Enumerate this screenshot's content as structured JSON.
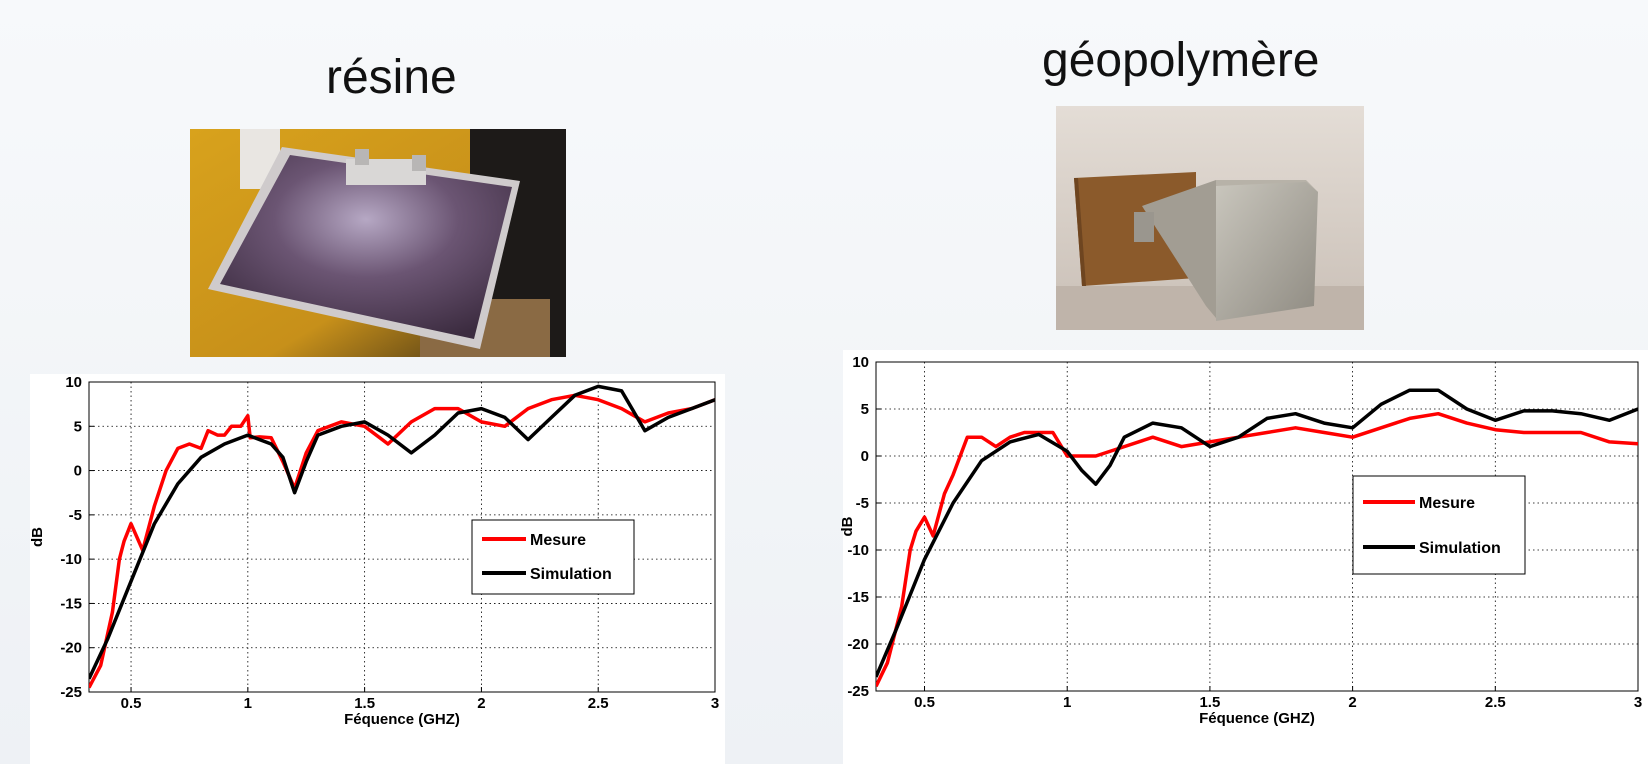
{
  "panels": [
    {
      "title": "résine",
      "photo_icon": "resin-horn-antenna-photo",
      "chart": {
        "type": "line",
        "xlabel": "Féquence (GHZ)",
        "ylabel": "dB",
        "xlim": [
          0.32,
          3
        ],
        "ylim": [
          -25,
          10
        ],
        "xticks": [
          0.5,
          1,
          1.5,
          2,
          2.5,
          3
        ],
        "xtick_labels": [
          "0.5",
          "1",
          "1.5",
          "2",
          "2.5",
          "3"
        ],
        "yticks": [
          10,
          5,
          0,
          -5,
          -10,
          -15,
          -20,
          -25
        ],
        "ytick_labels": [
          "10",
          "5",
          "0",
          "-5",
          "-10",
          "-15",
          "-20",
          "-25"
        ],
        "grid": true,
        "legend_position": "center-right",
        "series": [
          {
            "name": "Mesure",
            "color": "#ff0000",
            "x": [
              0.32,
              0.37,
              0.42,
              0.45,
              0.47,
              0.5,
              0.55,
              0.6,
              0.65,
              0.7,
              0.75,
              0.8,
              0.83,
              0.87,
              0.9,
              0.93,
              0.97,
              1.0,
              1.01,
              1.05,
              1.1,
              1.15,
              1.2,
              1.25,
              1.3,
              1.4,
              1.5,
              1.6,
              1.7,
              1.8,
              1.9,
              2.0,
              2.1,
              2.2,
              2.3,
              2.4,
              2.5,
              2.6,
              2.7,
              2.8,
              2.9,
              3.0
            ],
            "y": [
              -24.5,
              -22,
              -16,
              -10,
              -8,
              -6,
              -9,
              -4,
              0,
              2.5,
              3,
              2.5,
              4.5,
              4,
              4,
              5,
              5,
              6.2,
              3.7,
              3.8,
              3.7,
              1,
              -2,
              2,
              4.5,
              5.5,
              5,
              3,
              5.5,
              7,
              7,
              5.5,
              5,
              7,
              8,
              8.5,
              8,
              7,
              5.5,
              6.5,
              7,
              8
            ]
          },
          {
            "name": "Simulation",
            "color": "#000000",
            "x": [
              0.32,
              0.4,
              0.5,
              0.6,
              0.7,
              0.8,
              0.9,
              1.0,
              1.1,
              1.15,
              1.2,
              1.25,
              1.3,
              1.4,
              1.5,
              1.6,
              1.7,
              1.8,
              1.9,
              2.0,
              2.1,
              2.2,
              2.3,
              2.4,
              2.5,
              2.6,
              2.7,
              2.8,
              2.9,
              3.0
            ],
            "y": [
              -23.5,
              -19,
              -12.5,
              -6,
              -1.5,
              1.5,
              3,
              4,
              3,
              1.5,
              -2.5,
              1,
              4,
              5,
              5.5,
              4,
              2,
              4,
              6.5,
              7,
              6,
              3.5,
              6,
              8.5,
              9.5,
              9,
              4.5,
              6,
              7,
              8
            ]
          }
        ]
      }
    },
    {
      "title": "géopolymère",
      "photo_icon": "geopolymer-horn-antenna-photo",
      "chart": {
        "type": "line",
        "xlabel": "Féquence (GHZ)",
        "ylabel": "dB",
        "xlim": [
          0.33,
          3
        ],
        "ylim": [
          -25,
          10
        ],
        "xticks": [
          0.5,
          1,
          1.5,
          2,
          2.5,
          3
        ],
        "xtick_labels": [
          "0.5",
          "1",
          "1.5",
          "2",
          "2.5",
          "3"
        ],
        "yticks": [
          10,
          5,
          0,
          -5,
          -10,
          -15,
          -20,
          -25
        ],
        "ytick_labels": [
          "10",
          "5",
          "0",
          "-5",
          "-10",
          "-15",
          "-20",
          "-25"
        ],
        "grid": true,
        "legend_position": "center-right",
        "series": [
          {
            "name": "Mesure",
            "color": "#ff0000",
            "x": [
              0.33,
              0.37,
              0.42,
              0.45,
              0.47,
              0.5,
              0.53,
              0.57,
              0.6,
              0.65,
              0.7,
              0.75,
              0.8,
              0.85,
              0.9,
              0.95,
              1.0,
              1.1,
              1.2,
              1.3,
              1.4,
              1.5,
              1.6,
              1.7,
              1.8,
              1.9,
              2.0,
              2.1,
              2.2,
              2.3,
              2.4,
              2.5,
              2.6,
              2.7,
              2.8,
              2.9,
              3.0
            ],
            "y": [
              -24.5,
              -22,
              -16,
              -10,
              -8,
              -6.5,
              -8.5,
              -4,
              -2,
              2,
              2,
              1,
              2,
              2.5,
              2.5,
              2.5,
              0,
              0,
              1,
              2,
              1,
              1.5,
              2,
              2.5,
              3,
              2.5,
              2,
              3,
              4,
              4.5,
              3.5,
              2.8,
              2.5,
              2.5,
              2.5,
              1.5,
              1.3
            ]
          },
          {
            "name": "Simulation",
            "color": "#000000",
            "x": [
              0.33,
              0.4,
              0.5,
              0.6,
              0.7,
              0.8,
              0.9,
              1.0,
              1.05,
              1.1,
              1.15,
              1.2,
              1.3,
              1.4,
              1.5,
              1.6,
              1.7,
              1.8,
              1.9,
              2.0,
              2.1,
              2.2,
              2.3,
              2.4,
              2.5,
              2.6,
              2.7,
              2.8,
              2.9,
              3.0
            ],
            "y": [
              -23.5,
              -18.5,
              -11,
              -5,
              -0.5,
              1.5,
              2.3,
              0.5,
              -1.5,
              -3,
              -1,
              2,
              3.5,
              3,
              1,
              2,
              4,
              4.5,
              3.5,
              3,
              5.5,
              7,
              7,
              5,
              3.8,
              4.8,
              4.8,
              4.5,
              3.8,
              5
            ]
          }
        ]
      }
    }
  ]
}
